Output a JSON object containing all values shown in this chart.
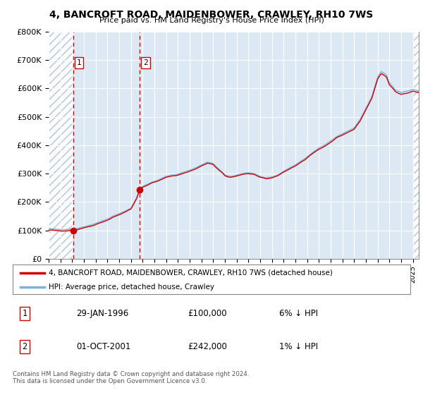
{
  "title": "4, BANCROFT ROAD, MAIDENBOWER, CRAWLEY, RH10 7WS",
  "subtitle": "Price paid vs. HM Land Registry's House Price Index (HPI)",
  "legend_entry1": "4, BANCROFT ROAD, MAIDENBOWER, CRAWLEY, RH10 7WS (detached house)",
  "legend_entry2": "HPI: Average price, detached house, Crawley",
  "table_rows": [
    {
      "num": "1",
      "date": "29-JAN-1996",
      "price": "£100,000",
      "hpi": "6% ↓ HPI"
    },
    {
      "num": "2",
      "date": "01-OCT-2001",
      "price": "£242,000",
      "hpi": "1% ↓ HPI"
    }
  ],
  "footnote1": "Contains HM Land Registry data © Crown copyright and database right 2024.",
  "footnote2": "This data is licensed under the Open Government Licence v3.0.",
  "line_color_red": "#cc0000",
  "line_color_blue": "#7fb0d8",
  "ylim": [
    0,
    800000
  ],
  "ytick_vals": [
    0,
    100000,
    200000,
    300000,
    400000,
    500000,
    600000,
    700000,
    800000
  ],
  "ytick_labels": [
    "£0",
    "£100K",
    "£200K",
    "£300K",
    "£400K",
    "£500K",
    "£600K",
    "£700K",
    "£800K"
  ],
  "xlim_start": 1994.0,
  "xlim_end": 2025.5,
  "sold_years": [
    1996.08,
    2001.75
  ],
  "sold_prices": [
    100000,
    242000
  ],
  "sale_labels": [
    "1",
    "2"
  ]
}
